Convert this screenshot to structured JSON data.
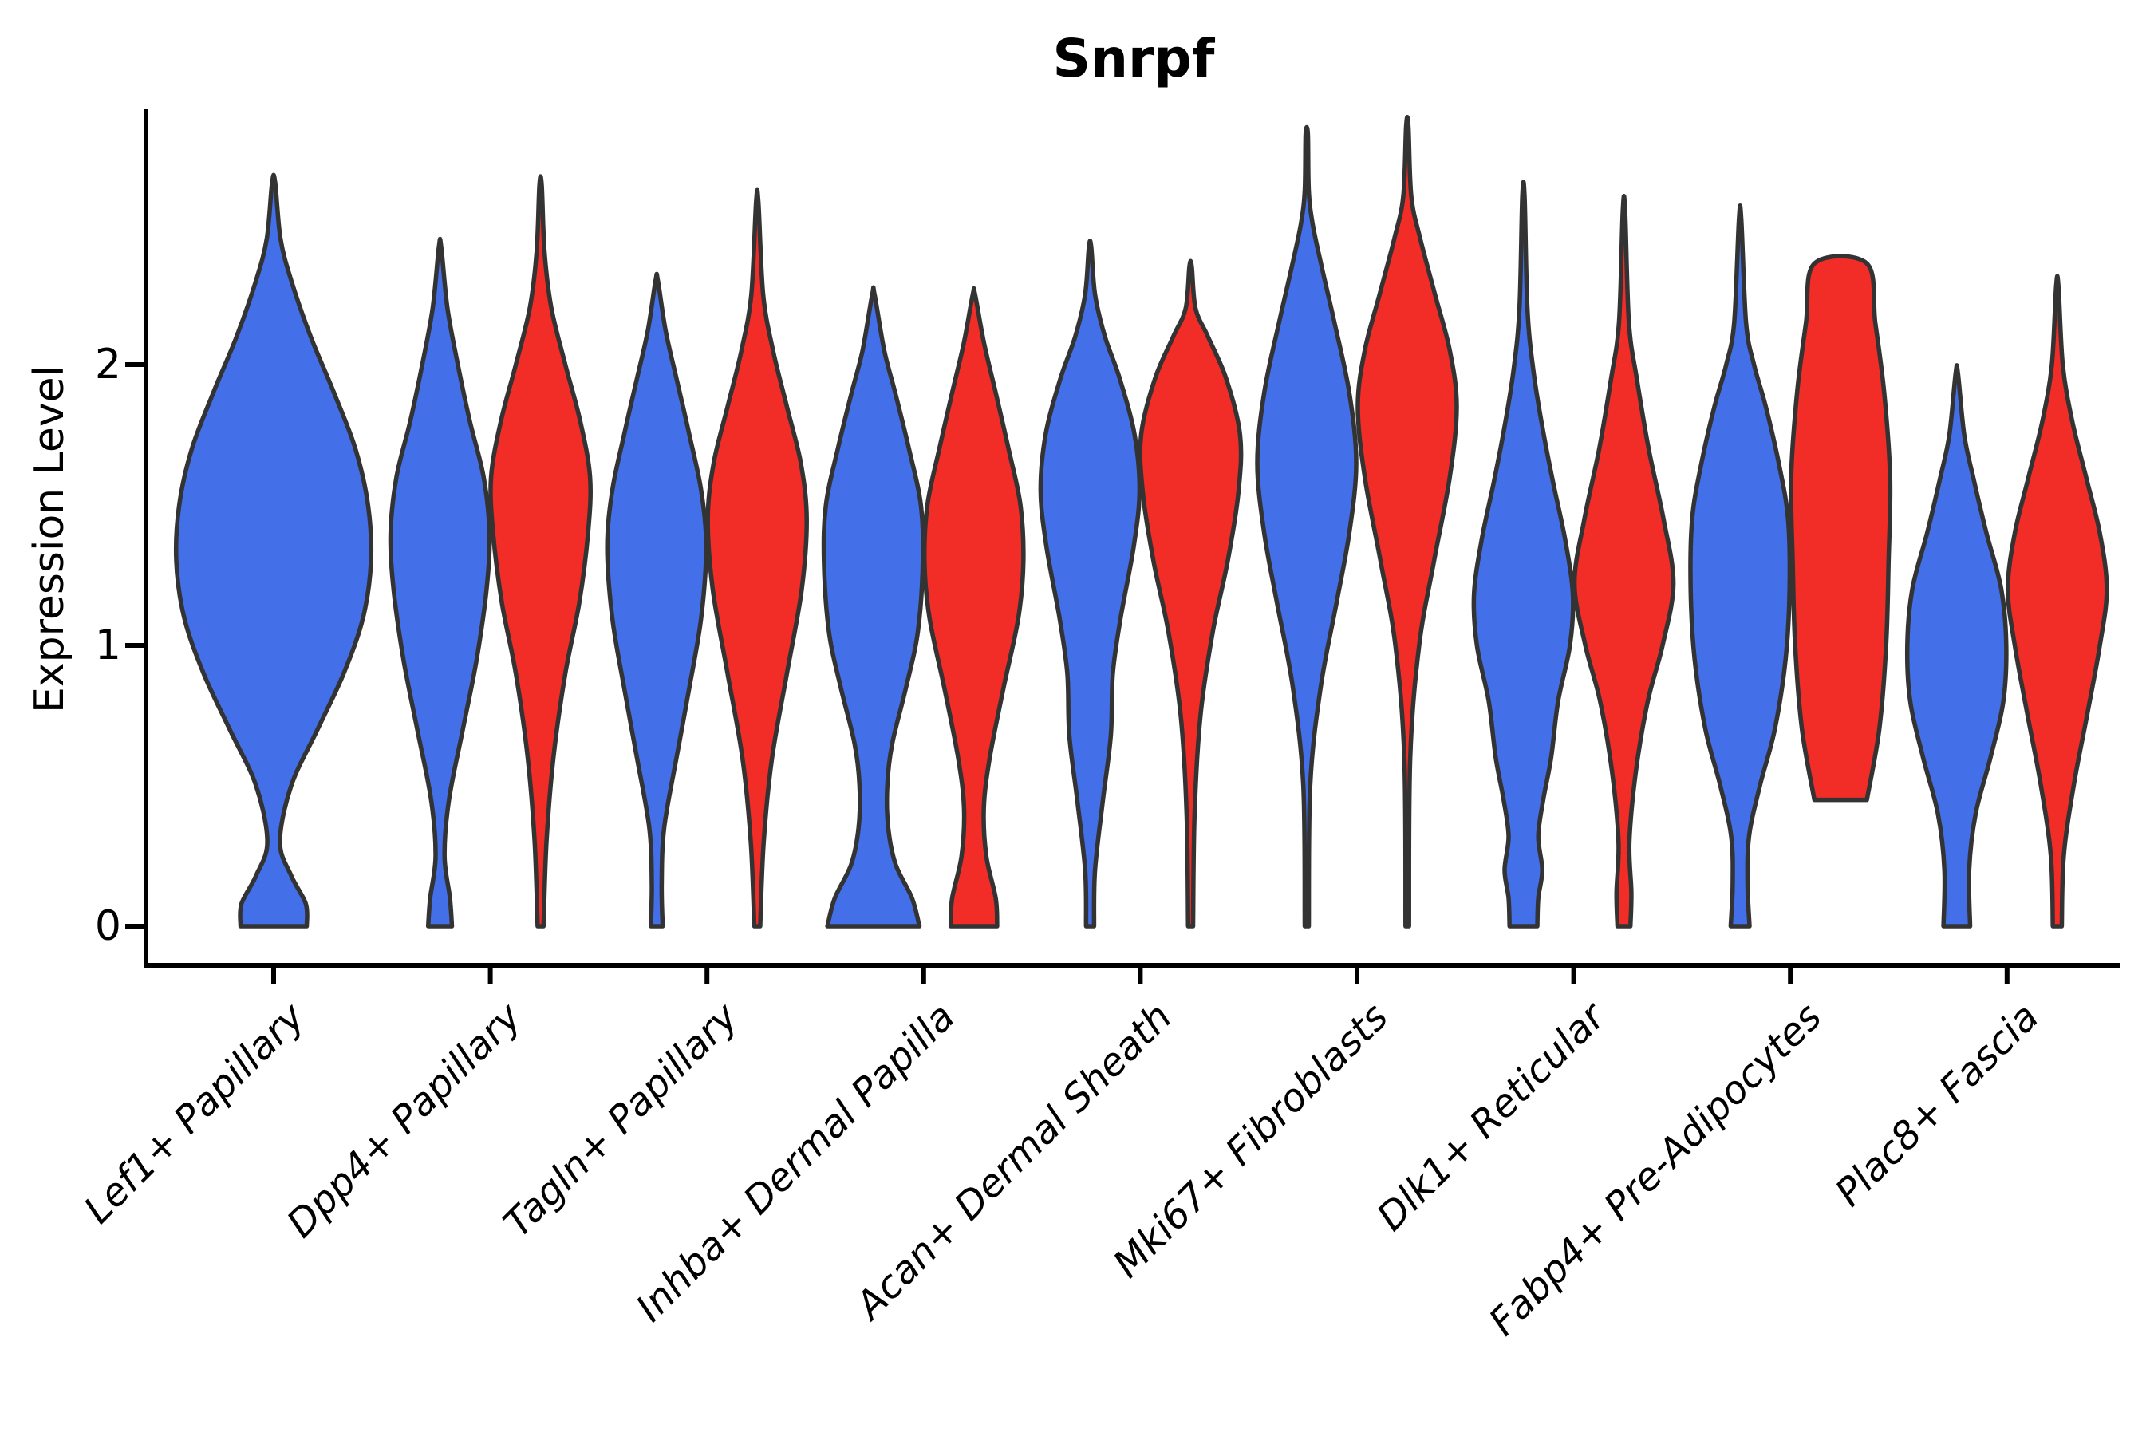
{
  "title": "Snrpf",
  "ylabel": "Expression Level",
  "colors": {
    "blue": "#4370E8",
    "red": "#F22D28",
    "outline": "#333333",
    "axis": "#000000"
  },
  "chart_data": {
    "type": "violin",
    "title": "Snrpf",
    "ylabel": "Expression Level",
    "xlabel": "",
    "yticks": [
      0,
      1,
      2
    ],
    "ylim": [
      -0.15,
      2.9
    ],
    "grid": false,
    "legend": false,
    "categories": [
      "Lef1+ Papillary",
      "Dpp4+ Papillary",
      "Tagln+ Papillary",
      "Inhba+ Dermal Papilla",
      "Acan+ Dermal Sheath",
      "Mki67+ Fibroblasts",
      "Dlk1+ Reticular",
      "Fabp4+ Pre-Adipocytes",
      "Plac8+ Fascia"
    ],
    "groups": [
      "blue",
      "red"
    ],
    "violins": [
      {
        "category": "Lef1+ Papillary",
        "group": "blue",
        "position": "center",
        "max_value": 2.65,
        "profile": [
          [
            0,
            0.34
          ],
          [
            0.08,
            0.33
          ],
          [
            0.18,
            0.18
          ],
          [
            0.3,
            0.065
          ],
          [
            0.5,
            0.18
          ],
          [
            0.7,
            0.45
          ],
          [
            0.9,
            0.72
          ],
          [
            1.1,
            0.92
          ],
          [
            1.3,
            1.0
          ],
          [
            1.5,
            0.97
          ],
          [
            1.7,
            0.84
          ],
          [
            1.9,
            0.62
          ],
          [
            2.1,
            0.38
          ],
          [
            2.3,
            0.18
          ],
          [
            2.45,
            0.07
          ],
          [
            2.65,
            0.015
          ]
        ]
      },
      {
        "category": "Dpp4+ Papillary",
        "group": "blue",
        "position": "left",
        "max_value": 2.42,
        "profile": [
          [
            0,
            0.24
          ],
          [
            0.1,
            0.2
          ],
          [
            0.25,
            0.09
          ],
          [
            0.45,
            0.18
          ],
          [
            0.7,
            0.46
          ],
          [
            0.95,
            0.74
          ],
          [
            1.2,
            0.94
          ],
          [
            1.4,
            1.0
          ],
          [
            1.6,
            0.88
          ],
          [
            1.8,
            0.6
          ],
          [
            2.0,
            0.36
          ],
          [
            2.2,
            0.15
          ],
          [
            2.42,
            0.015
          ]
        ]
      },
      {
        "category": "Dpp4+ Papillary",
        "group": "red",
        "position": "right",
        "max_value": 2.64,
        "profile": [
          [
            0,
            0.06
          ],
          [
            0.3,
            0.12
          ],
          [
            0.6,
            0.26
          ],
          [
            0.9,
            0.5
          ],
          [
            1.15,
            0.78
          ],
          [
            1.4,
            0.96
          ],
          [
            1.6,
            1.0
          ],
          [
            1.8,
            0.8
          ],
          [
            2.0,
            0.5
          ],
          [
            2.2,
            0.22
          ],
          [
            2.4,
            0.08
          ],
          [
            2.64,
            0.015
          ]
        ]
      },
      {
        "category": "Tagln+ Papillary",
        "group": "blue",
        "position": "left",
        "max_value": 2.3,
        "profile": [
          [
            0,
            0.12
          ],
          [
            0.15,
            0.1
          ],
          [
            0.35,
            0.15
          ],
          [
            0.6,
            0.4
          ],
          [
            0.85,
            0.66
          ],
          [
            1.1,
            0.9
          ],
          [
            1.35,
            1.0
          ],
          [
            1.55,
            0.9
          ],
          [
            1.75,
            0.66
          ],
          [
            1.95,
            0.4
          ],
          [
            2.12,
            0.18
          ],
          [
            2.3,
            0.015
          ]
        ]
      },
      {
        "category": "Tagln+ Papillary",
        "group": "red",
        "position": "right",
        "max_value": 2.58,
        "profile": [
          [
            0,
            0.06
          ],
          [
            0.3,
            0.13
          ],
          [
            0.6,
            0.3
          ],
          [
            0.9,
            0.6
          ],
          [
            1.2,
            0.9
          ],
          [
            1.45,
            1.0
          ],
          [
            1.65,
            0.88
          ],
          [
            1.85,
            0.6
          ],
          [
            2.05,
            0.32
          ],
          [
            2.25,
            0.12
          ],
          [
            2.58,
            0.015
          ]
        ]
      },
      {
        "category": "Inhba+ Dermal Papilla",
        "group": "blue",
        "position": "left",
        "max_value": 2.25,
        "profile": [
          [
            0,
            0.93
          ],
          [
            0.1,
            0.78
          ],
          [
            0.22,
            0.45
          ],
          [
            0.35,
            0.3
          ],
          [
            0.5,
            0.28
          ],
          [
            0.65,
            0.38
          ],
          [
            0.85,
            0.66
          ],
          [
            1.05,
            0.9
          ],
          [
            1.3,
            1.0
          ],
          [
            1.5,
            0.96
          ],
          [
            1.7,
            0.72
          ],
          [
            1.9,
            0.44
          ],
          [
            2.05,
            0.22
          ],
          [
            2.25,
            0.015
          ]
        ]
      },
      {
        "category": "Inhba+ Dermal Papilla",
        "group": "red",
        "position": "right",
        "max_value": 2.25,
        "profile": [
          [
            0,
            0.47
          ],
          [
            0.1,
            0.44
          ],
          [
            0.25,
            0.25
          ],
          [
            0.42,
            0.2
          ],
          [
            0.6,
            0.32
          ],
          [
            0.85,
            0.6
          ],
          [
            1.1,
            0.9
          ],
          [
            1.3,
            1.0
          ],
          [
            1.5,
            0.94
          ],
          [
            1.7,
            0.7
          ],
          [
            1.9,
            0.44
          ],
          [
            2.08,
            0.2
          ],
          [
            2.25,
            0.015
          ]
        ]
      },
      {
        "category": "Acan+ Dermal Sheath",
        "group": "blue",
        "position": "left",
        "max_value": 2.42,
        "profile": [
          [
            0,
            0.08
          ],
          [
            0.2,
            0.1
          ],
          [
            0.45,
            0.26
          ],
          [
            0.68,
            0.42
          ],
          [
            0.9,
            0.46
          ],
          [
            1.1,
            0.62
          ],
          [
            1.35,
            0.88
          ],
          [
            1.55,
            1.0
          ],
          [
            1.75,
            0.9
          ],
          [
            1.95,
            0.6
          ],
          [
            2.1,
            0.3
          ],
          [
            2.25,
            0.1
          ],
          [
            2.42,
            0.015
          ]
        ]
      },
      {
        "category": "Acan+ Dermal Sheath",
        "group": "red",
        "position": "right",
        "max_value": 2.35,
        "profile": [
          [
            0,
            0.05
          ],
          [
            0.4,
            0.08
          ],
          [
            0.75,
            0.2
          ],
          [
            1.05,
            0.45
          ],
          [
            1.3,
            0.75
          ],
          [
            1.55,
            0.97
          ],
          [
            1.75,
            1.0
          ],
          [
            1.95,
            0.72
          ],
          [
            2.1,
            0.35
          ],
          [
            2.2,
            0.1
          ],
          [
            2.35,
            0.015
          ]
        ]
      },
      {
        "category": "Mki67+ Fibroblasts",
        "group": "blue",
        "position": "left",
        "max_value": 2.82,
        "profile": [
          [
            0,
            0.04
          ],
          [
            0.5,
            0.07
          ],
          [
            0.85,
            0.28
          ],
          [
            1.15,
            0.6
          ],
          [
            1.4,
            0.86
          ],
          [
            1.65,
            1.0
          ],
          [
            1.9,
            0.86
          ],
          [
            2.15,
            0.56
          ],
          [
            2.35,
            0.3
          ],
          [
            2.5,
            0.12
          ],
          [
            2.62,
            0.04
          ],
          [
            2.82,
            0.015
          ]
        ]
      },
      {
        "category": "Mki67+ Fibroblasts",
        "group": "red",
        "position": "right",
        "max_value": 2.85,
        "profile": [
          [
            0,
            0.035
          ],
          [
            0.6,
            0.06
          ],
          [
            1.0,
            0.24
          ],
          [
            1.3,
            0.54
          ],
          [
            1.6,
            0.86
          ],
          [
            1.85,
            1.0
          ],
          [
            2.05,
            0.86
          ],
          [
            2.25,
            0.56
          ],
          [
            2.45,
            0.26
          ],
          [
            2.6,
            0.08
          ],
          [
            2.85,
            0.015
          ]
        ]
      },
      {
        "category": "Dlk1+ Reticular",
        "group": "blue",
        "position": "left",
        "max_value": 2.6,
        "profile": [
          [
            0,
            0.28
          ],
          [
            0.1,
            0.3
          ],
          [
            0.2,
            0.38
          ],
          [
            0.32,
            0.3
          ],
          [
            0.45,
            0.4
          ],
          [
            0.6,
            0.56
          ],
          [
            0.8,
            0.7
          ],
          [
            1.0,
            0.94
          ],
          [
            1.18,
            1.0
          ],
          [
            1.38,
            0.84
          ],
          [
            1.58,
            0.6
          ],
          [
            1.78,
            0.38
          ],
          [
            1.98,
            0.2
          ],
          [
            2.2,
            0.08
          ],
          [
            2.6,
            0.015
          ]
        ]
      },
      {
        "category": "Dlk1+ Reticular",
        "group": "red",
        "position": "right",
        "max_value": 2.55,
        "profile": [
          [
            0,
            0.13
          ],
          [
            0.12,
            0.15
          ],
          [
            0.3,
            0.11
          ],
          [
            0.55,
            0.24
          ],
          [
            0.8,
            0.48
          ],
          [
            1.0,
            0.78
          ],
          [
            1.22,
            1.0
          ],
          [
            1.45,
            0.8
          ],
          [
            1.7,
            0.5
          ],
          [
            1.95,
            0.26
          ],
          [
            2.15,
            0.1
          ],
          [
            2.55,
            0.015
          ]
        ]
      },
      {
        "category": "Fabp4+ Pre-Adipocytes",
        "group": "blue",
        "position": "left",
        "max_value": 2.52,
        "profile": [
          [
            0,
            0.19
          ],
          [
            0.15,
            0.15
          ],
          [
            0.32,
            0.18
          ],
          [
            0.5,
            0.4
          ],
          [
            0.7,
            0.7
          ],
          [
            0.95,
            0.92
          ],
          [
            1.2,
            1.0
          ],
          [
            1.45,
            0.97
          ],
          [
            1.65,
            0.78
          ],
          [
            1.85,
            0.52
          ],
          [
            2.0,
            0.28
          ],
          [
            2.15,
            0.12
          ],
          [
            2.52,
            0.015
          ]
        ]
      },
      {
        "category": "Fabp4+ Pre-Adipocytes",
        "group": "red",
        "position": "right",
        "max_value": 2.36,
        "truncated": true,
        "profile": [
          [
            0.45,
            0.53
          ],
          [
            0.7,
            0.78
          ],
          [
            1.0,
            0.92
          ],
          [
            1.3,
            0.97
          ],
          [
            1.6,
            1.0
          ],
          [
            1.9,
            0.88
          ],
          [
            2.15,
            0.7
          ],
          [
            2.36,
            0.53
          ]
        ]
      },
      {
        "category": "Plac8+ Fascia",
        "group": "blue",
        "position": "left",
        "max_value": 1.97,
        "profile": [
          [
            0,
            0.27
          ],
          [
            0.2,
            0.25
          ],
          [
            0.4,
            0.38
          ],
          [
            0.6,
            0.68
          ],
          [
            0.8,
            0.94
          ],
          [
            1.0,
            1.0
          ],
          [
            1.2,
            0.9
          ],
          [
            1.4,
            0.6
          ],
          [
            1.6,
            0.33
          ],
          [
            1.75,
            0.15
          ],
          [
            1.97,
            0.015
          ]
        ]
      },
      {
        "category": "Plac8+ Fascia",
        "group": "red",
        "position": "right",
        "max_value": 2.28,
        "profile": [
          [
            0,
            0.09
          ],
          [
            0.25,
            0.13
          ],
          [
            0.5,
            0.33
          ],
          [
            0.75,
            0.6
          ],
          [
            1.0,
            0.86
          ],
          [
            1.2,
            1.0
          ],
          [
            1.4,
            0.86
          ],
          [
            1.6,
            0.58
          ],
          [
            1.8,
            0.3
          ],
          [
            2.0,
            0.11
          ],
          [
            2.28,
            0.015
          ]
        ]
      }
    ]
  }
}
